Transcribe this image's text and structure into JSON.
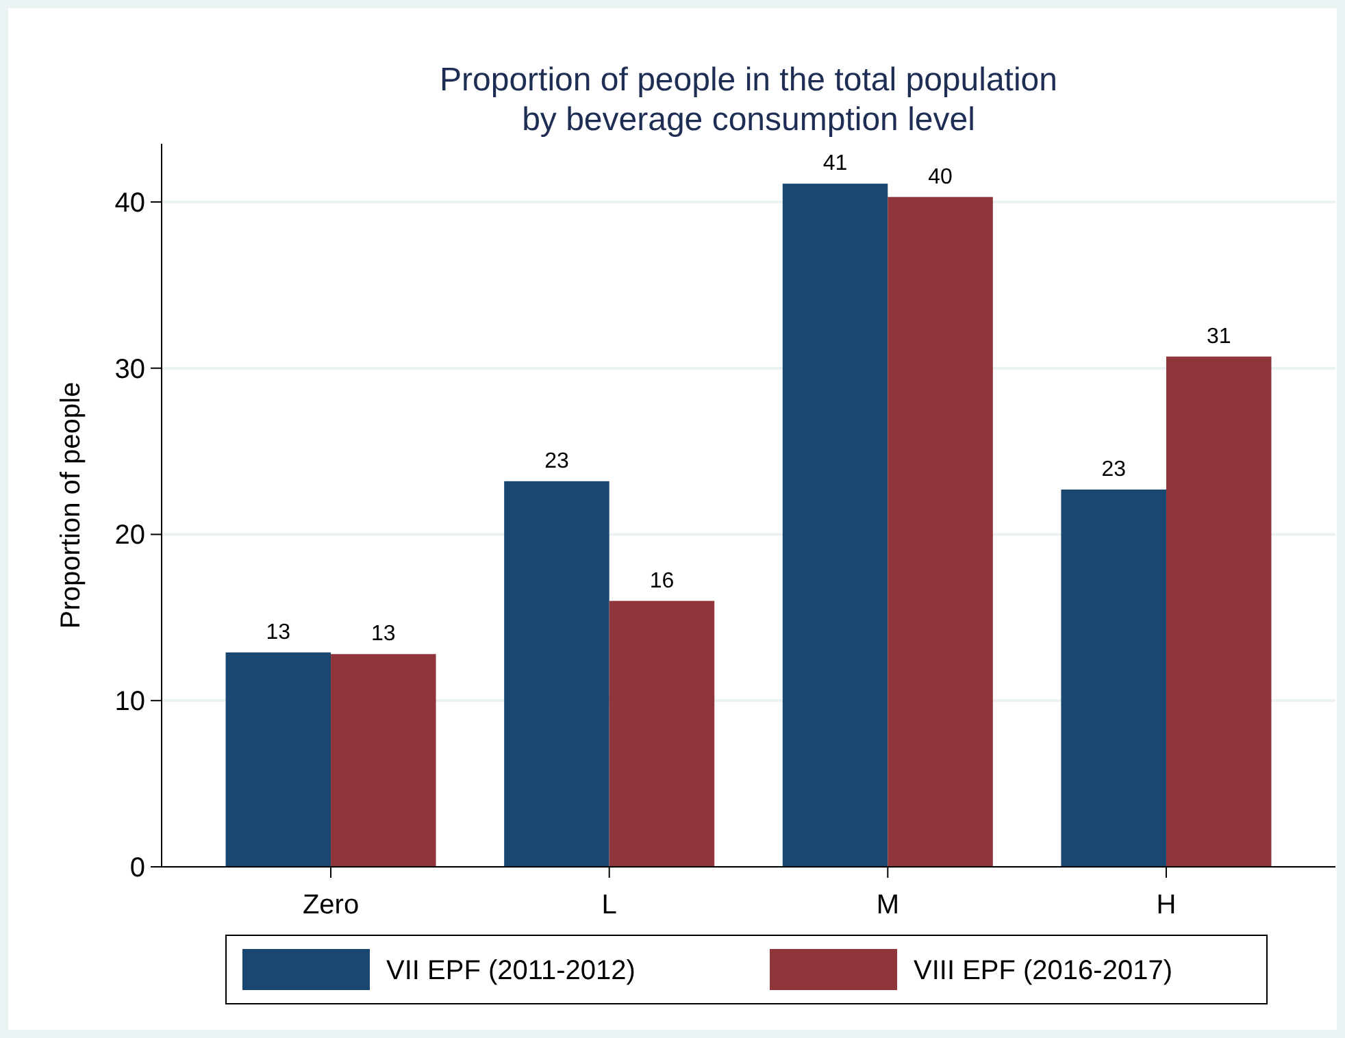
{
  "chart_data": {
    "type": "bar",
    "title": "Proportion of people in the total population\nby beverage consumption level",
    "ylabel": "Proportion of people",
    "categories": [
      "Zero",
      "L",
      "M",
      "H"
    ],
    "series": [
      {
        "name": "VII EPF (2011-2012)",
        "color": "#1a476f",
        "values": [
          12.9,
          23.2,
          41.1,
          22.7
        ],
        "value_labels": [
          "13",
          "23",
          "41",
          "23"
        ]
      },
      {
        "name": "VIII EPF (2016-2017)",
        "color": "#90353b",
        "values": [
          12.8,
          16.0,
          40.3,
          30.7
        ],
        "value_labels": [
          "13",
          "16",
          "40",
          "31"
        ]
      }
    ],
    "ylim": [
      0,
      43.5
    ],
    "yticks": [
      0,
      10,
      20,
      30,
      40
    ],
    "grid": "y",
    "legend": "bottom"
  }
}
